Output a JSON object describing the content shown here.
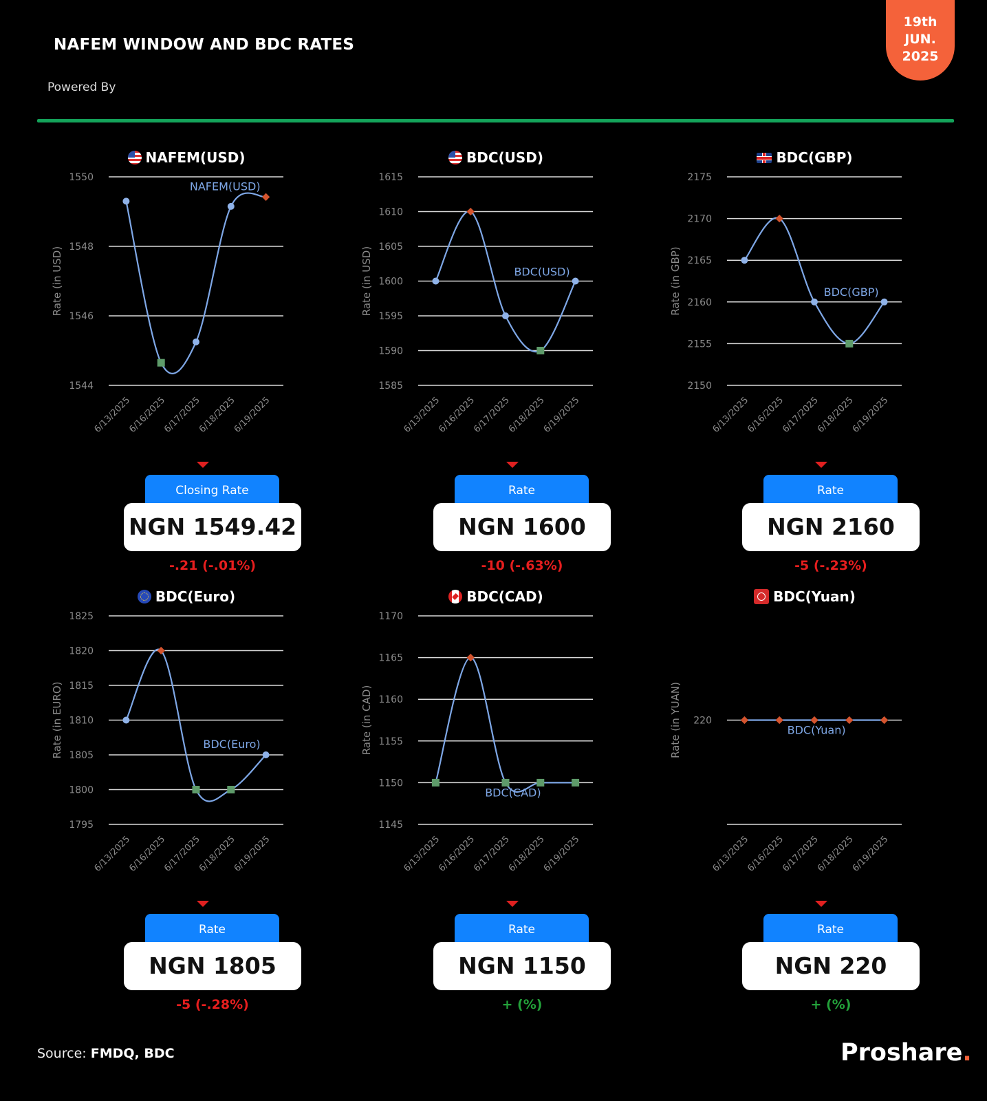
{
  "header": {
    "title": "NAFEM WINDOW AND BDC RATES",
    "powered_by": "Powered By",
    "date_line1": "19th",
    "date_line2": "JUN.",
    "date_line3": "2025",
    "accent_color": "#f4623a",
    "divider_color": "#14a35a"
  },
  "footer": {
    "source_label": "Source:",
    "source_value": "FMDQ, BDC",
    "brand": "Proshare",
    "brand_dot": "."
  },
  "cards": [
    {
      "tab_label": "Closing Rate",
      "value": "NGN 1549.42",
      "change": "-.21 (-.01%)",
      "direction": "down"
    },
    {
      "tab_label": "Rate",
      "value": "NGN 1600",
      "change": "-10 (-.63%)",
      "direction": "down"
    },
    {
      "tab_label": "Rate",
      "value": "NGN 2160",
      "change": "-5 (-.23%)",
      "direction": "down"
    },
    {
      "tab_label": "Rate",
      "value": "NGN 1805",
      "change": "-5 (-.28%)",
      "direction": "down"
    },
    {
      "tab_label": "Rate",
      "value": "NGN 1150",
      "change": "+ (%)",
      "direction": "up"
    },
    {
      "tab_label": "Rate",
      "value": "NGN 220",
      "change": "+ (%)",
      "direction": "up"
    }
  ],
  "chart_data": [
    {
      "type": "line",
      "title": "NAFEM(USD)",
      "flag": "us-flag-icon",
      "x": [
        "6/13/2025",
        "6/16/2025",
        "6/17/2025",
        "6/18/2025",
        "6/19/2025"
      ],
      "series": [
        {
          "name": "NAFEM(USD)",
          "values": [
            1549.3,
            1544.65,
            1545.25,
            1549.15,
            1549.42
          ]
        }
      ],
      "markers": [
        "circle",
        "square",
        "circle",
        "circle",
        "diamond"
      ],
      "ylabel": "Rate (in USD)",
      "ylim": [
        1544,
        1550
      ],
      "yticks": [
        1544,
        1546,
        1548,
        1550
      ],
      "grid": true
    },
    {
      "type": "line",
      "title": "BDC(USD)",
      "flag": "us-flag-icon",
      "x": [
        "6/13/2025",
        "6/16/2025",
        "6/17/2025",
        "6/18/2025",
        "6/19/2025"
      ],
      "series": [
        {
          "name": "BDC(USD)",
          "values": [
            1600,
            1610,
            1595,
            1590,
            1600
          ]
        }
      ],
      "markers": [
        "circle",
        "diamond",
        "circle",
        "square",
        "circle"
      ],
      "ylabel": "Rate (in USD)",
      "ylim": [
        1585,
        1615
      ],
      "yticks": [
        1585,
        1590,
        1595,
        1600,
        1605,
        1610,
        1615
      ],
      "grid": true
    },
    {
      "type": "line",
      "title": "BDC(GBP)",
      "flag": "uk-flag-icon",
      "x": [
        "6/13/2025",
        "6/16/2025",
        "6/17/2025",
        "6/18/2025",
        "6/19/2025"
      ],
      "series": [
        {
          "name": "BDC(GBP)",
          "values": [
            2165,
            2170,
            2160,
            2155,
            2160
          ]
        }
      ],
      "markers": [
        "circle",
        "diamond",
        "circle",
        "square",
        "circle"
      ],
      "ylabel": "Rate (in GBP)",
      "ylim": [
        2150,
        2175
      ],
      "yticks": [
        2150,
        2155,
        2160,
        2165,
        2170,
        2175
      ],
      "grid": true
    },
    {
      "type": "line",
      "title": "BDC(Euro)",
      "flag": "eu-flag-icon",
      "x": [
        "6/13/2025",
        "6/16/2025",
        "6/17/2025",
        "6/18/2025",
        "6/19/2025"
      ],
      "series": [
        {
          "name": "BDC(Euro)",
          "values": [
            1810,
            1820,
            1800,
            1800,
            1805
          ]
        }
      ],
      "markers": [
        "circle",
        "diamond",
        "square",
        "square",
        "circle"
      ],
      "ylabel": "Rate (in EURO)",
      "ylim": [
        1795,
        1825
      ],
      "yticks": [
        1795,
        1800,
        1805,
        1810,
        1815,
        1820,
        1825
      ],
      "grid": true
    },
    {
      "type": "line",
      "title": "BDC(CAD)",
      "flag": "ca-flag-icon",
      "x": [
        "6/13/2025",
        "6/16/2025",
        "6/17/2025",
        "6/18/2025",
        "6/19/2025"
      ],
      "series": [
        {
          "name": "BDC(CAD)",
          "values": [
            1150,
            1165,
            1150,
            1150,
            1150
          ]
        }
      ],
      "markers": [
        "square",
        "diamond",
        "square",
        "square",
        "square"
      ],
      "ylabel": "Rate (in CAD)",
      "ylim": [
        1145,
        1170
      ],
      "yticks": [
        1145,
        1150,
        1155,
        1160,
        1165,
        1170
      ],
      "grid": true
    },
    {
      "type": "line",
      "title": "BDC(Yuan)",
      "flag": "cn-flag-icon",
      "x": [
        "6/13/2025",
        "6/16/2025",
        "6/17/2025",
        "6/18/2025",
        "6/19/2025"
      ],
      "series": [
        {
          "name": "BDC(Yuan)",
          "values": [
            220,
            220,
            220,
            220,
            220
          ]
        }
      ],
      "markers": [
        "diamond",
        "diamond",
        "diamond",
        "diamond",
        "diamond"
      ],
      "ylabel": "Rate (in YUAN)",
      "ylim": [
        190,
        250
      ],
      "yticks": [
        220
      ],
      "grid": true
    }
  ]
}
